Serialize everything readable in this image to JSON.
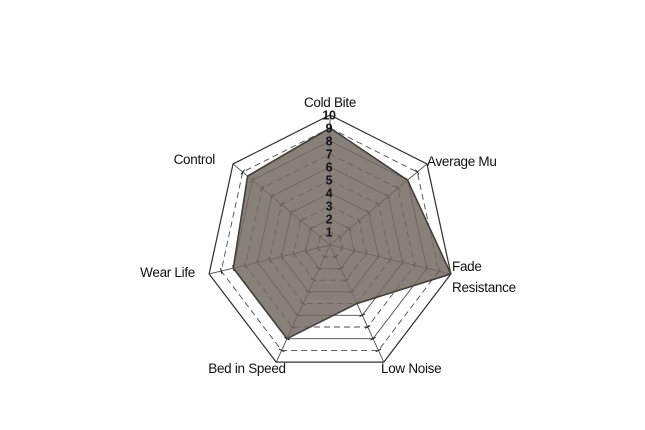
{
  "chart_data": {
    "type": "radar",
    "categories": [
      "Cold Bite",
      "Average Mu",
      "Fade Resistance",
      "Low Noise",
      "Bed in Speed",
      "Wear Life",
      "Control"
    ],
    "values": [
      9,
      8,
      10,
      5,
      8,
      8,
      8.5
    ],
    "label_lines": {
      "Fade Resistance": [
        "Fade",
        "Resistance"
      ]
    },
    "rmin": 0,
    "rmax": 10,
    "ring_tick_labels": [
      "10",
      "9",
      "8",
      "7",
      "6",
      "5",
      "4",
      "3",
      "2",
      "1"
    ],
    "grid": "concentric heptagons, even rings solid, odd rings dashed, spokes with tick marks",
    "legend": "none",
    "colors": {
      "background": "#ffffff",
      "fill": "#736b62",
      "fill_opacity": 0.85,
      "fill_stroke": "#443e38",
      "grid_line": "#4a4a4a",
      "outer_line": "#2e2e2e",
      "tick_mark": "#222222",
      "label_text": "#111111",
      "ring_number_text": "#151515"
    }
  }
}
